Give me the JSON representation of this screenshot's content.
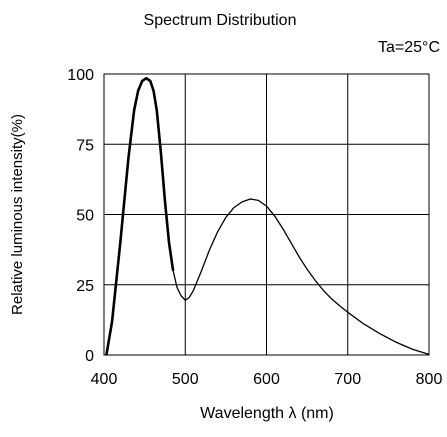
{
  "chart_data": {
    "type": "line",
    "title": "Spectrum Distribution",
    "annotation": "Ta=25°C",
    "xlabel": "Wavelength  λ (nm)",
    "ylabel": "Relative luminous intensity(%)",
    "xlim": [
      400,
      800
    ],
    "ylim": [
      0,
      100
    ],
    "x_ticks": [
      400,
      500,
      600,
      700,
      800
    ],
    "y_ticks": [
      0,
      25,
      50,
      75,
      100
    ],
    "grid": true,
    "legend": "none",
    "colors": {
      "line": "#000000",
      "grid": "#000000",
      "background": "#ffffff"
    },
    "series": [
      {
        "points": [
          [
            403,
            0
          ],
          [
            410,
            12
          ],
          [
            420,
            40
          ],
          [
            430,
            70
          ],
          [
            437,
            87
          ],
          [
            442,
            94
          ],
          [
            447,
            97.5
          ],
          [
            452,
            98.5
          ],
          [
            457,
            97.5
          ],
          [
            461,
            94
          ],
          [
            465,
            87
          ],
          [
            470,
            72
          ],
          [
            475,
            55
          ],
          [
            480,
            40
          ],
          [
            485,
            30
          ],
          [
            490,
            24
          ],
          [
            495,
            21
          ],
          [
            500,
            19.5
          ],
          [
            505,
            20.5
          ],
          [
            510,
            23
          ],
          [
            520,
            30
          ],
          [
            530,
            37.5
          ],
          [
            540,
            44
          ],
          [
            550,
            49
          ],
          [
            560,
            52.5
          ],
          [
            570,
            54.5
          ],
          [
            580,
            55.5
          ],
          [
            590,
            55
          ],
          [
            600,
            53
          ],
          [
            610,
            49.5
          ],
          [
            620,
            45
          ],
          [
            630,
            40
          ],
          [
            640,
            35
          ],
          [
            650,
            30.5
          ],
          [
            660,
            26.5
          ],
          [
            670,
            23
          ],
          [
            680,
            20
          ],
          [
            690,
            17.5
          ],
          [
            700,
            15.2
          ],
          [
            720,
            11
          ],
          [
            740,
            7.5
          ],
          [
            760,
            4.5
          ],
          [
            780,
            2
          ],
          [
            800,
            0.2
          ]
        ]
      }
    ]
  }
}
